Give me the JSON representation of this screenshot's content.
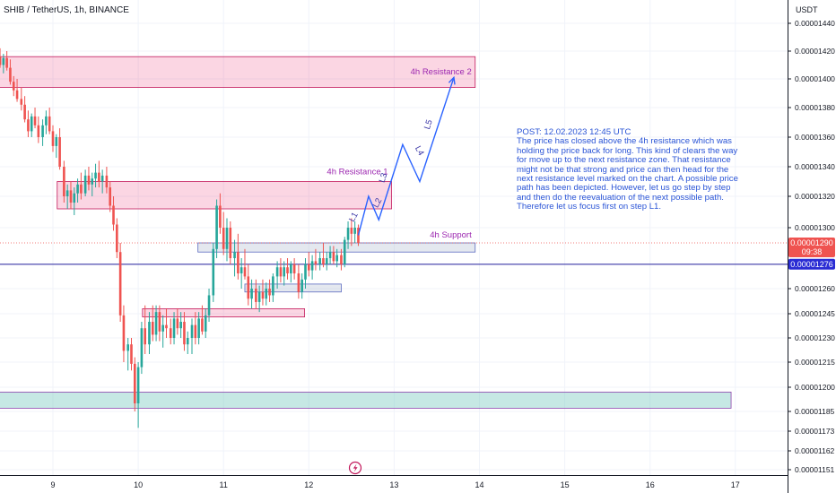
{
  "header": {
    "title": "SHIB / TetherUS, 1h, BINANCE"
  },
  "axis": {
    "currency": "USDT",
    "price_ticks": [
      "0.00001440",
      "0.00001420",
      "0.00001400",
      "0.00001380",
      "0.00001360",
      "0.00001340",
      "0.00001320",
      "0.00001300",
      "0.00001260",
      "0.00001245",
      "0.00001230",
      "0.00001215",
      "0.00001200",
      "0.00001185",
      "0.00001173",
      "0.00001162",
      "0.00001151"
    ],
    "date_ticks": [
      "9",
      "10",
      "11",
      "12",
      "13",
      "14",
      "15",
      "16",
      "17"
    ]
  },
  "badges": {
    "last_price": "0.00001290",
    "countdown": "09:38",
    "line_price": "0.00001276"
  },
  "zones": [
    {
      "label": "4h Resistance 2",
      "color": "#e91e63"
    },
    {
      "label": "4h Resistance 1",
      "color": "#e91e63"
    },
    {
      "label": "4h Support",
      "color": "#9aa5b8"
    }
  ],
  "wave_labels": [
    "L1",
    "L2",
    "L3",
    "L4",
    "L5"
  ],
  "annotation": {
    "text": "POST: 12.02.2023 12:45 UTC\nThe price has closed above the 4h resistance which was holding the price back for long. This kind of clears the way for move up to the next resistance zone. That resistance might not be that strong and price can then head for the next resistance level marked on the chart. A possible price path has been depicted. However, let us go step by step and then do the reevaluation of the next possible path. Therefore let us focus first on step L1."
  },
  "colors": {
    "up": "#26a69a",
    "down": "#ef5350",
    "path": "#2962ff",
    "support_zone": "#b2dfdb"
  },
  "chart_data": {
    "type": "candlestick",
    "title": "SHIB / TetherUS, 1h, BINANCE",
    "ylabel": "USDT",
    "ylim": [
      1.15e-05,
      1.45e-05
    ],
    "x_ticks": [
      "9",
      "10",
      "11",
      "12",
      "13",
      "14",
      "15",
      "16",
      "17"
    ],
    "last_price": 1.29e-05,
    "horizontal_line": 1.276e-05,
    "zones": [
      {
        "label": "4h Resistance 2",
        "from_day": 8.3,
        "to_day": 13.95,
        "low": 1.394e-05,
        "high": 1.416e-05
      },
      {
        "label": "4h Resistance 1",
        "from_day": 9.05,
        "to_day": 12.97,
        "low": 1.312e-05,
        "high": 1.33e-05
      },
      {
        "label": "4h Support",
        "from_day": 10.7,
        "to_day": 13.95,
        "low": 1.284e-05,
        "high": 1.29e-05
      },
      {
        "label": "",
        "from_day": 11.25,
        "to_day": 12.38,
        "low": 1.258e-05,
        "high": 1.263e-05
      },
      {
        "label": "",
        "from_day": 10.05,
        "to_day": 11.95,
        "low": 1.243e-05,
        "high": 1.248e-05
      },
      {
        "label": "",
        "from_day": 8.3,
        "to_day": 16.95,
        "low": 1.187e-05,
        "high": 1.197e-05
      }
    ],
    "projected_path": [
      {
        "day": 12.58,
        "price": 1.295e-05
      },
      {
        "day": 12.7,
        "price": 1.32e-05
      },
      {
        "day": 12.82,
        "price": 1.305e-05
      },
      {
        "day": 13.1,
        "price": 1.355e-05
      },
      {
        "day": 13.3,
        "price": 1.33e-05
      },
      {
        "day": 13.7,
        "price": 1.401e-05
      }
    ],
    "wave_labels": [
      {
        "text": "L1",
        "day": 12.55,
        "price": 1.306e-05
      },
      {
        "text": "L2",
        "day": 12.83,
        "price": 1.315e-05
      },
      {
        "text": "L3",
        "day": 12.9,
        "price": 1.332e-05
      },
      {
        "text": "L4",
        "day": 13.27,
        "price": 1.35e-05
      },
      {
        "text": "L5",
        "day": 13.43,
        "price": 1.368e-05
      }
    ],
    "candles_note": "OHLC per hourly candle, x in days of Feb 2023 (open,high,low,close)",
    "candles": [
      [
        8.25,
        1.415e-05,
        1.423e-05,
        1.408e-05,
        1.418e-05
      ],
      [
        8.29,
        1.418e-05,
        1.425e-05,
        1.41e-05,
        1.412e-05
      ],
      [
        8.33,
        1.412e-05,
        1.42e-05,
        1.405e-05,
        1.416e-05
      ],
      [
        8.38,
        1.416e-05,
        1.422e-05,
        1.408e-05,
        1.41e-05
      ],
      [
        8.42,
        1.41e-05,
        1.418e-05,
        1.404e-05,
        1.415e-05
      ],
      [
        8.46,
        1.415e-05,
        1.42e-05,
        1.406e-05,
        1.408e-05
      ],
      [
        8.5,
        1.408e-05,
        1.414e-05,
        1.396e-05,
        1.398e-05
      ],
      [
        8.54,
        1.398e-05,
        1.402e-05,
        1.388e-05,
        1.392e-05
      ],
      [
        8.58,
        1.392e-05,
        1.4e-05,
        1.384e-05,
        1.386e-05
      ],
      [
        8.63,
        1.386e-05,
        1.394e-05,
        1.378e-05,
        1.382e-05
      ],
      [
        8.67,
        1.382e-05,
        1.388e-05,
        1.37e-05,
        1.372e-05
      ],
      [
        8.71,
        1.372e-05,
        1.378e-05,
        1.36e-05,
        1.364e-05
      ],
      [
        8.75,
        1.364e-05,
        1.376e-05,
        1.36e-05,
        1.374e-05
      ],
      [
        8.79,
        1.374e-05,
        1.38e-05,
        1.366e-05,
        1.368e-05
      ],
      [
        8.83,
        1.368e-05,
        1.374e-05,
        1.356e-05,
        1.36e-05
      ],
      [
        8.88,
        1.36e-05,
        1.372e-05,
        1.354e-05,
        1.368e-05
      ],
      [
        8.92,
        1.368e-05,
        1.378e-05,
        1.362e-05,
        1.374e-05
      ],
      [
        8.96,
        1.374e-05,
        1.38e-05,
        1.362e-05,
        1.364e-05
      ],
      [
        9.0,
        1.364e-05,
        1.368e-05,
        1.35e-05,
        1.354e-05
      ],
      [
        9.04,
        1.354e-05,
        1.362e-05,
        1.346e-05,
        1.36e-05
      ],
      [
        9.08,
        1.36e-05,
        1.366e-05,
        1.338e-05,
        1.34e-05
      ],
      [
        9.13,
        1.34e-05,
        1.344e-05,
        1.316e-05,
        1.32e-05
      ],
      [
        9.17,
        1.32e-05,
        1.328e-05,
        1.312e-05,
        1.324e-05
      ],
      [
        9.21,
        1.324e-05,
        1.33e-05,
        1.312e-05,
        1.316e-05
      ],
      [
        9.25,
        1.316e-05,
        1.326e-05,
        1.308e-05,
        1.322e-05
      ],
      [
        9.29,
        1.322e-05,
        1.332e-05,
        1.316e-05,
        1.328e-05
      ],
      [
        9.33,
        1.328e-05,
        1.336e-05,
        1.318e-05,
        1.322e-05
      ],
      [
        9.38,
        1.322e-05,
        1.338e-05,
        1.32e-05,
        1.334e-05
      ],
      [
        9.42,
        1.334e-05,
        1.34e-05,
        1.324e-05,
        1.328e-05
      ],
      [
        9.46,
        1.328e-05,
        1.336e-05,
        1.32e-05,
        1.332e-05
      ],
      [
        9.5,
        1.332e-05,
        1.342e-05,
        1.326e-05,
        1.336e-05
      ],
      [
        9.54,
        1.336e-05,
        1.344e-05,
        1.326e-05,
        1.33e-05
      ],
      [
        9.58,
        1.33e-05,
        1.338e-05,
        1.322e-05,
        1.334e-05
      ],
      [
        9.63,
        1.334e-05,
        1.34e-05,
        1.322e-05,
        1.326e-05
      ],
      [
        9.67,
        1.326e-05,
        1.33e-05,
        1.31e-05,
        1.314e-05
      ],
      [
        9.71,
        1.314e-05,
        1.32e-05,
        1.298e-05,
        1.302e-05
      ],
      [
        9.75,
        1.302e-05,
        1.306e-05,
        1.28e-05,
        1.284e-05
      ],
      [
        9.79,
        1.284e-05,
        1.29e-05,
        1.24e-05,
        1.244e-05
      ],
      [
        9.83,
        1.244e-05,
        1.25e-05,
        1.215e-05,
        1.222e-05
      ],
      [
        9.88,
        1.222e-05,
        1.23e-05,
        1.21e-05,
        1.226e-05
      ],
      [
        9.92,
        1.226e-05,
        1.23e-05,
        1.21e-05,
        1.214e-05
      ],
      [
        9.96,
        1.214e-05,
        1.218e-05,
        1.185e-05,
        1.19e-05
      ],
      [
        10.0,
        1.19e-05,
        1.215e-05,
        1.175e-05,
        1.212e-05
      ],
      [
        10.04,
        1.212e-05,
        1.24e-05,
        1.208e-05,
        1.236e-05
      ],
      [
        10.08,
        1.236e-05,
        1.25e-05,
        1.22e-05,
        1.226e-05
      ],
      [
        10.13,
        1.226e-05,
        1.246e-05,
        1.22e-05,
        1.24e-05
      ],
      [
        10.17,
        1.24e-05,
        1.25e-05,
        1.228e-05,
        1.232e-05
      ],
      [
        10.21,
        1.232e-05,
        1.25e-05,
        1.228e-05,
        1.246e-05
      ],
      [
        10.25,
        1.246e-05,
        1.25e-05,
        1.228e-05,
        1.234e-05
      ],
      [
        10.29,
        1.234e-05,
        1.244e-05,
        1.224e-05,
        1.238e-05
      ],
      [
        10.33,
        1.238e-05,
        1.248e-05,
        1.23e-05,
        1.236e-05
      ],
      [
        10.38,
        1.236e-05,
        1.242e-05,
        1.226e-05,
        1.23e-05
      ],
      [
        10.42,
        1.23e-05,
        1.246e-05,
        1.226e-05,
        1.242e-05
      ],
      [
        10.46,
        1.242e-05,
        1.248e-05,
        1.232e-05,
        1.236e-05
      ],
      [
        10.5,
        1.236e-05,
        1.246e-05,
        1.23e-05,
        1.24e-05
      ],
      [
        10.54,
        1.24e-05,
        1.246e-05,
        1.222e-05,
        1.226e-05
      ],
      [
        10.58,
        1.226e-05,
        1.234e-05,
        1.22e-05,
        1.23e-05
      ],
      [
        10.63,
        1.23e-05,
        1.242e-05,
        1.22e-05,
        1.238e-05
      ],
      [
        10.67,
        1.238e-05,
        1.246e-05,
        1.226e-05,
        1.23e-05
      ],
      [
        10.71,
        1.23e-05,
        1.246e-05,
        1.226e-05,
        1.242e-05
      ],
      [
        10.75,
        1.242e-05,
        1.25e-05,
        1.232e-05,
        1.234e-05
      ],
      [
        10.79,
        1.234e-05,
        1.248e-05,
        1.23e-05,
        1.244e-05
      ],
      [
        10.83,
        1.244e-05,
        1.26e-05,
        1.24e-05,
        1.256e-05
      ],
      [
        10.88,
        1.256e-05,
        1.29e-05,
        1.252e-05,
        1.286e-05
      ],
      [
        10.92,
        1.286e-05,
        1.318e-05,
        1.28e-05,
        1.314e-05
      ],
      [
        10.96,
        1.314e-05,
        1.322e-05,
        1.296e-05,
        1.3e-05
      ],
      [
        11.0,
        1.3e-05,
        1.31e-05,
        1.282e-05,
        1.286e-05
      ],
      [
        11.04,
        1.286e-05,
        1.306e-05,
        1.278e-05,
        1.3e-05
      ],
      [
        11.08,
        1.3e-05,
        1.304e-05,
        1.276e-05,
        1.28e-05
      ],
      [
        11.13,
        1.28e-05,
        1.292e-05,
        1.268e-05,
        1.284e-05
      ],
      [
        11.17,
        1.284e-05,
        1.296e-05,
        1.266e-05,
        1.27e-05
      ],
      [
        11.21,
        1.27e-05,
        1.28e-05,
        1.26e-05,
        1.274e-05
      ],
      [
        11.25,
        1.274e-05,
        1.286e-05,
        1.266e-05,
        1.268e-05
      ],
      [
        11.29,
        1.268e-05,
        1.276e-05,
        1.25e-05,
        1.254e-05
      ],
      [
        11.33,
        1.254e-05,
        1.266e-05,
        1.248e-05,
        1.26e-05
      ],
      [
        11.38,
        1.26e-05,
        1.266e-05,
        1.248e-05,
        1.252e-05
      ],
      [
        11.42,
        1.252e-05,
        1.262e-05,
        1.246e-05,
        1.258e-05
      ],
      [
        11.46,
        1.258e-05,
        1.266e-05,
        1.25e-05,
        1.254e-05
      ],
      [
        11.5,
        1.254e-05,
        1.264e-05,
        1.25e-05,
        1.26e-05
      ],
      [
        11.54,
        1.26e-05,
        1.266e-05,
        1.252e-05,
        1.256e-05
      ],
      [
        11.58,
        1.256e-05,
        1.27e-05,
        1.252e-05,
        1.268e-05
      ],
      [
        11.63,
        1.268e-05,
        1.278e-05,
        1.26e-05,
        1.274e-05
      ],
      [
        11.67,
        1.274e-05,
        1.28e-05,
        1.264e-05,
        1.268e-05
      ],
      [
        11.71,
        1.268e-05,
        1.278e-05,
        1.262e-05,
        1.274e-05
      ],
      [
        11.75,
        1.274e-05,
        1.28e-05,
        1.266e-05,
        1.27e-05
      ],
      [
        11.79,
        1.27e-05,
        1.278e-05,
        1.264e-05,
        1.276e-05
      ],
      [
        11.83,
        1.276e-05,
        1.28e-05,
        1.266e-05,
        1.27e-05
      ],
      [
        11.88,
        1.27e-05,
        1.276e-05,
        1.254e-05,
        1.258e-05
      ],
      [
        11.92,
        1.258e-05,
        1.27e-05,
        1.254e-05,
        1.266e-05
      ],
      [
        11.96,
        1.266e-05,
        1.28e-05,
        1.26e-05,
        1.276e-05
      ],
      [
        12.0,
        1.276e-05,
        1.284e-05,
        1.268e-05,
        1.272e-05
      ],
      [
        12.04,
        1.272e-05,
        1.282e-05,
        1.266e-05,
        1.278e-05
      ],
      [
        12.08,
        1.278e-05,
        1.286e-05,
        1.272e-05,
        1.276e-05
      ],
      [
        12.13,
        1.276e-05,
        1.284e-05,
        1.272e-05,
        1.28e-05
      ],
      [
        12.17,
        1.28e-05,
        1.29e-05,
        1.274e-05,
        1.276e-05
      ],
      [
        12.21,
        1.276e-05,
        1.284e-05,
        1.272e-05,
        1.28e-05
      ],
      [
        12.25,
        1.28e-05,
        1.288e-05,
        1.276e-05,
        1.284e-05
      ],
      [
        12.29,
        1.284e-05,
        1.288e-05,
        1.276e-05,
        1.278e-05
      ],
      [
        12.33,
        1.278e-05,
        1.286e-05,
        1.274e-05,
        1.282e-05
      ],
      [
        12.38,
        1.282e-05,
        1.286e-05,
        1.272e-05,
        1.276e-05
      ],
      [
        12.42,
        1.276e-05,
        1.294e-05,
        1.274e-05,
        1.292e-05
      ],
      [
        12.46,
        1.292e-05,
        1.304e-05,
        1.286e-05,
        1.3e-05
      ],
      [
        12.5,
        1.3e-05,
        1.306e-05,
        1.288e-05,
        1.296e-05
      ],
      [
        12.54,
        1.296e-05,
        1.304e-05,
        1.29e-05,
        1.3e-05
      ],
      [
        12.58,
        1.3e-05,
        1.302e-05,
        1.288e-05,
        1.29e-05
      ]
    ]
  }
}
